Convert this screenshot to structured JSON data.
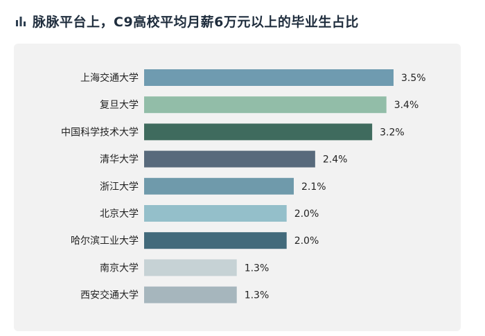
{
  "title": "脉脉平台上，C9高校平均月薪6万元以上的毕业生占比",
  "title_icon": "bar-chart-icon",
  "colors": {
    "title_icon": "#2d3e50",
    "panel_bg": "#f2f2f2"
  },
  "chart_data": {
    "type": "bar",
    "orientation": "horizontal",
    "categories": [
      "上海交通大学",
      "复旦大学",
      "中国科学技术大学",
      "清华大学",
      "浙江大学",
      "北京大学",
      "哈尔滨工业大学",
      "南京大学",
      "西安交通大学"
    ],
    "values": [
      3.5,
      3.4,
      3.2,
      2.4,
      2.1,
      2.0,
      2.0,
      1.3,
      1.3
    ],
    "value_labels": [
      "3.5%",
      "3.4%",
      "3.2%",
      "2.4%",
      "2.1%",
      "2.0%",
      "2.0%",
      "1.3%",
      "1.3%"
    ],
    "bar_colors": [
      "#6f9bb0",
      "#92bda8",
      "#3f6b5e",
      "#586a7c",
      "#6f9aab",
      "#94bfca",
      "#426a7b",
      "#c6d2d5",
      "#a6b6bd"
    ],
    "xlim": [
      0,
      3.5
    ],
    "grid": false,
    "legend": "none"
  }
}
